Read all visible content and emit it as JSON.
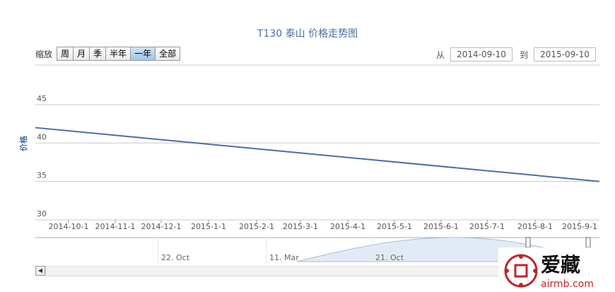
{
  "chart_data": {
    "type": "line",
    "title": "T130 泰山  价格走势图",
    "ylabel": "价格",
    "ylim": [
      30,
      47
    ],
    "yticks": [
      30,
      35,
      40,
      45
    ],
    "x_ticks": [
      "2014-10-1",
      "2014-11-1",
      "2014-12-1",
      "2015-1-1",
      "2015-2-1",
      "2015-3-1",
      "2015-4-1",
      "2015-5-1",
      "2015-6-1",
      "2015-7-1",
      "2015-8-1",
      "2015-9-1"
    ],
    "x": [
      "2014-09-10",
      "2015-09-10"
    ],
    "series": [
      {
        "values": [
          42,
          35
        ]
      }
    ],
    "grid": true,
    "line_color": "#4a6fa5"
  },
  "zoom": {
    "label": "缩放",
    "buttons": [
      "周",
      "月",
      "季",
      "半年",
      "一年",
      "全部"
    ],
    "active": "一年"
  },
  "range": {
    "from_label": "从",
    "from_value": "2014-09-10",
    "to_label": "到",
    "to_value": "2015-09-10"
  },
  "navigator": {
    "labels": [
      "22. Oct",
      "11. Mar",
      "21. Oct"
    ]
  },
  "watermark": {
    "cn": "爱藏",
    "url": "airmb.com"
  }
}
